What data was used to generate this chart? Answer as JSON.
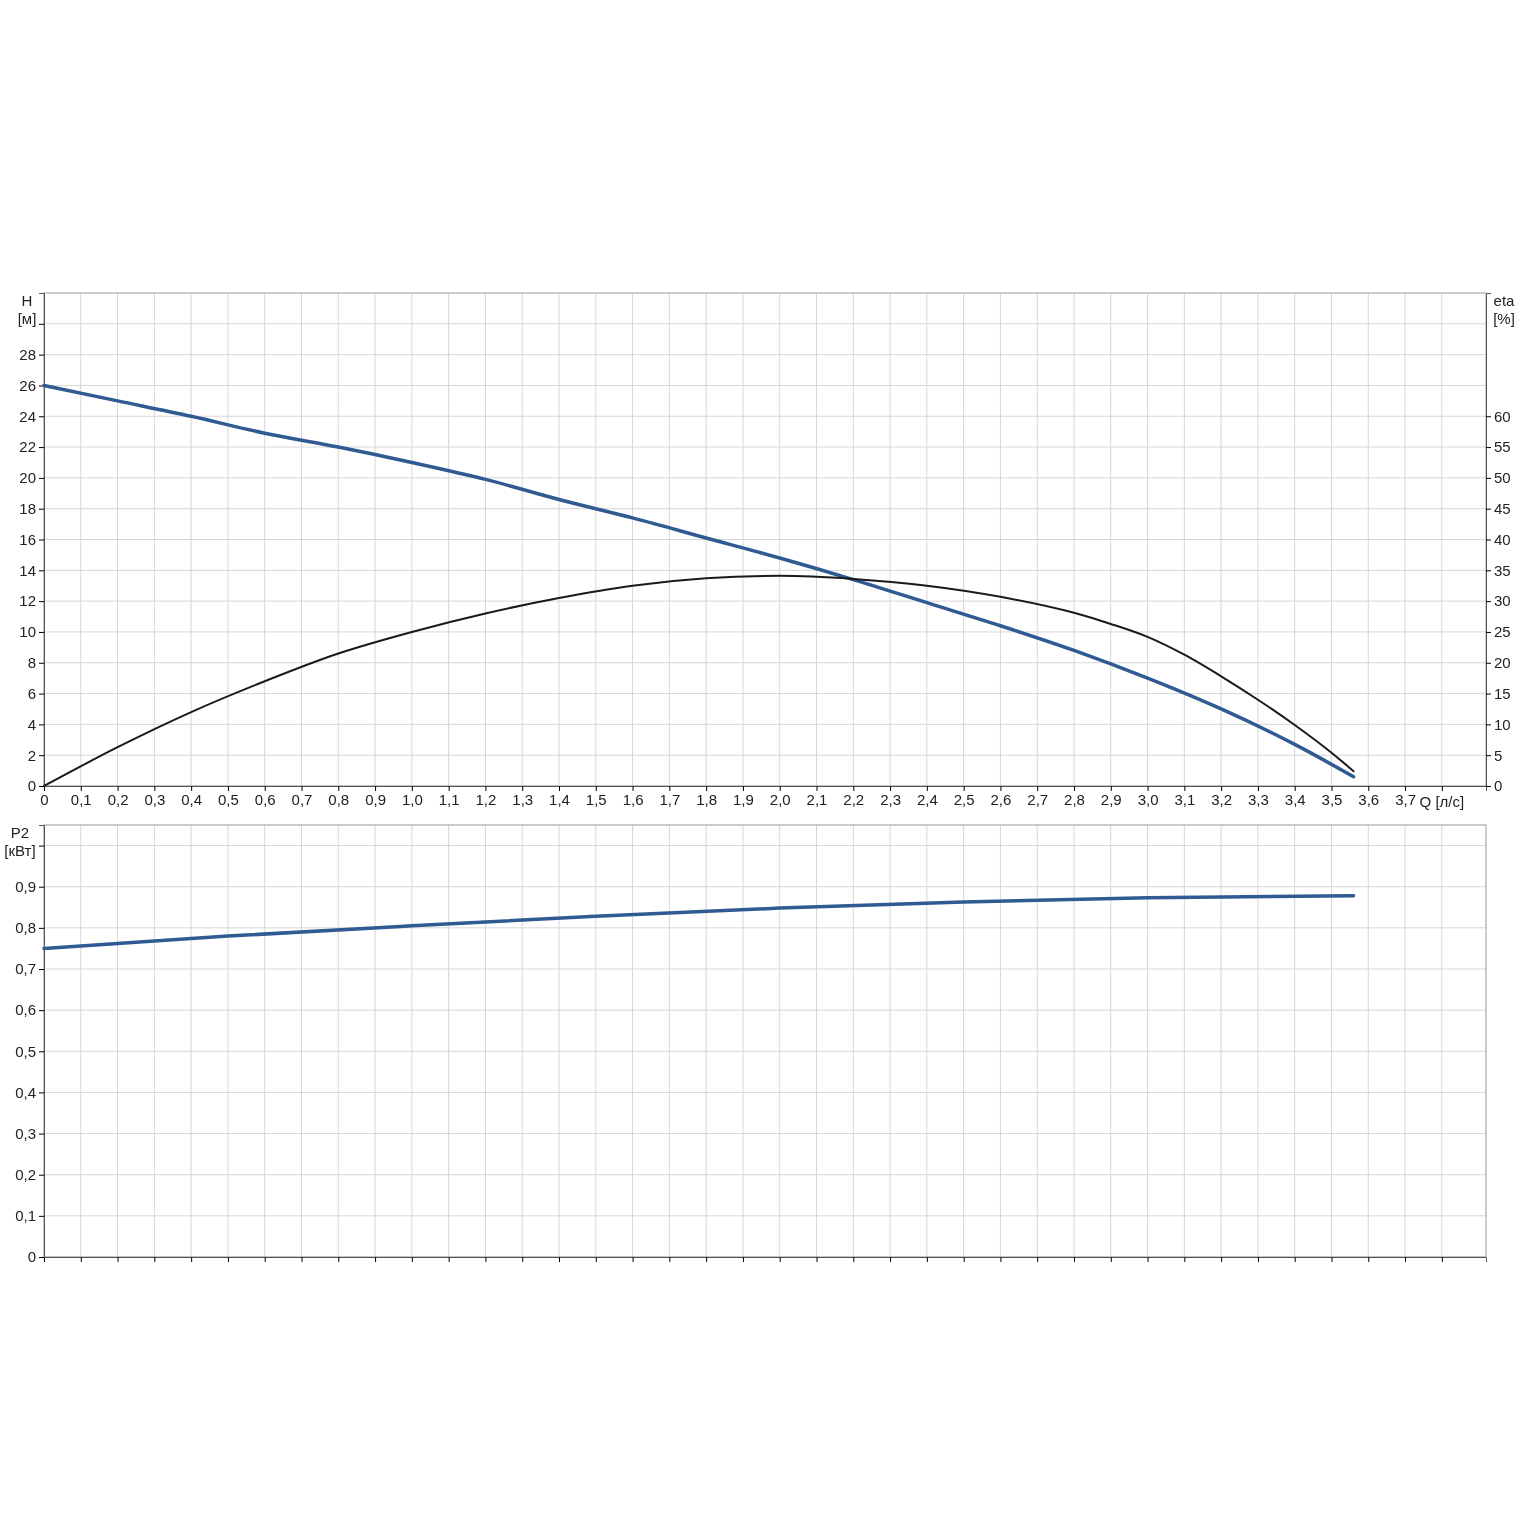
{
  "chart_data": [
    {
      "type": "line",
      "xlabel": "Q [л/с]",
      "ylabel": "H [м]",
      "y2label": "eta [%]",
      "xlim": [
        0,
        3.92
      ],
      "ylim": [
        0,
        32
      ],
      "y2lim": [
        0,
        80
      ],
      "xticks": [
        0,
        {
          "value": 0.1,
          "label": "0,1"
        },
        {
          "value": 0.2,
          "label": "0,2"
        },
        {
          "value": 0.3,
          "label": "0,3"
        },
        {
          "value": 0.4,
          "label": "0,4"
        },
        {
          "value": 0.5,
          "label": "0,5"
        },
        {
          "value": 0.6,
          "label": "0,6"
        },
        {
          "value": 0.7,
          "label": "0,7"
        },
        {
          "value": 0.8,
          "label": "0,8"
        },
        {
          "value": 0.9,
          "label": "0,9"
        },
        {
          "value": 1,
          "label": "1,0"
        },
        {
          "value": 1.1,
          "label": "1,1"
        },
        {
          "value": 1.2,
          "label": "1,2"
        },
        {
          "value": 1.3,
          "label": "1,3"
        },
        {
          "value": 1.4,
          "label": "1,4"
        },
        {
          "value": 1.5,
          "label": "1,5"
        },
        {
          "value": 1.6,
          "label": "1,6"
        },
        {
          "value": 1.7,
          "label": "1,7"
        },
        {
          "value": 1.8,
          "label": "1,8"
        },
        {
          "value": 1.9,
          "label": "1,9"
        },
        {
          "value": 2,
          "label": "2,0"
        },
        {
          "value": 2.1,
          "label": "2,1"
        },
        {
          "value": 2.2,
          "label": "2,2"
        },
        {
          "value": 2.3,
          "label": "2,3"
        },
        {
          "value": 2.4,
          "label": "2,4"
        },
        {
          "value": 2.5,
          "label": "2,5"
        },
        {
          "value": 2.6,
          "label": "2,6"
        },
        {
          "value": 2.7,
          "label": "2,7"
        },
        {
          "value": 2.8,
          "label": "2,8"
        },
        {
          "value": 2.9,
          "label": "2,9"
        },
        {
          "value": 3,
          "label": "3,0"
        },
        {
          "value": 3.1,
          "label": "3,1"
        },
        {
          "value": 3.2,
          "label": "3,2"
        },
        {
          "value": 3.3,
          "label": "3,3"
        },
        {
          "value": 3.4,
          "label": "3,4"
        },
        {
          "value": 3.5,
          "label": "3,5"
        },
        {
          "value": 3.6,
          "label": "3,6"
        },
        {
          "value": 3.7,
          "label": "3,7"
        },
        {
          "value": 3.8,
          "label": null
        }
      ],
      "yticks": [
        0,
        2,
        4,
        6,
        8,
        10,
        12,
        14,
        16,
        18,
        20,
        22,
        24,
        26,
        28,
        {
          "value": 30,
          "label": null
        }
      ],
      "y2ticks": [
        0,
        5,
        10,
        15,
        20,
        25,
        30,
        35,
        40,
        45,
        50,
        55,
        60
      ],
      "grid": true,
      "series": [
        {
          "color": "#2f5a92",
          "x": [
            0,
            0.2,
            0.4,
            0.6,
            0.8,
            1.0,
            1.2,
            1.4,
            1.6,
            1.8,
            2.0,
            2.2,
            2.4,
            2.6,
            2.8,
            3.0,
            3.2,
            3.4,
            3.56
          ],
          "values": [
            26,
            25,
            24,
            22.9,
            22,
            21,
            19.9,
            18.6,
            17.4,
            16.1,
            14.8,
            13.4,
            11.9,
            10.4,
            8.8,
            7.0,
            5.0,
            2.7,
            0.6
          ]
        },
        {
          "color": "#1a1a1a",
          "axis": "y2",
          "x": [
            0,
            0.2,
            0.4,
            0.6,
            0.8,
            1.0,
            1.2,
            1.4,
            1.6,
            1.8,
            2.0,
            2.2,
            2.4,
            2.6,
            2.8,
            2.9,
            3.0,
            3.1,
            3.2,
            3.3,
            3.4,
            3.5,
            3.56
          ],
          "values": [
            0,
            6.3,
            12,
            17,
            21.5,
            25,
            28,
            30.5,
            32.5,
            33.7,
            34.1,
            33.6,
            32.5,
            30.7,
            28.1,
            26.3,
            24.2,
            21.3,
            17.8,
            14,
            9.9,
            5.4,
            2.4
          ]
        }
      ]
    },
    {
      "type": "line",
      "ylabel": "P2 [кВт]",
      "xlim": [
        0,
        3.92
      ],
      "ylim": [
        0,
        1.05
      ],
      "tick_labels": "y",
      "grid": true,
      "xticks": [
        0,
        0.1,
        0.2,
        0.3,
        0.4,
        0.5,
        0.6,
        0.7,
        0.8,
        0.9,
        1,
        1.1,
        1.2,
        1.3,
        1.4,
        1.5,
        1.6,
        1.7,
        1.8,
        1.9,
        2,
        2.1,
        2.2,
        2.3,
        2.4,
        2.5,
        2.6,
        2.7,
        2.8,
        2.9,
        3,
        3.1,
        3.2,
        3.3,
        3.4,
        3.5,
        3.6,
        3.7,
        3.8
      ],
      "yticks": [
        0,
        {
          "value": 0.1,
          "label": "0,1"
        },
        {
          "value": 0.2,
          "label": "0,2"
        },
        {
          "value": 0.3,
          "label": "0,3"
        },
        {
          "value": 0.4,
          "label": "0,4"
        },
        {
          "value": 0.5,
          "label": "0,5"
        },
        {
          "value": 0.6,
          "label": "0,6"
        },
        {
          "value": 0.7,
          "label": "0,7"
        },
        {
          "value": 0.8,
          "label": "0,8"
        },
        {
          "value": 0.9,
          "label": "0,9"
        },
        {
          "value": 1,
          "label": null
        }
      ],
      "series": [
        {
          "color": "#2f5a92",
          "x": [
            0,
            0.5,
            1.0,
            1.5,
            2.0,
            2.5,
            3.0,
            3.56
          ],
          "values": [
            0.75,
            0.78,
            0.805,
            0.828,
            0.848,
            0.863,
            0.873,
            0.878
          ]
        }
      ]
    }
  ]
}
